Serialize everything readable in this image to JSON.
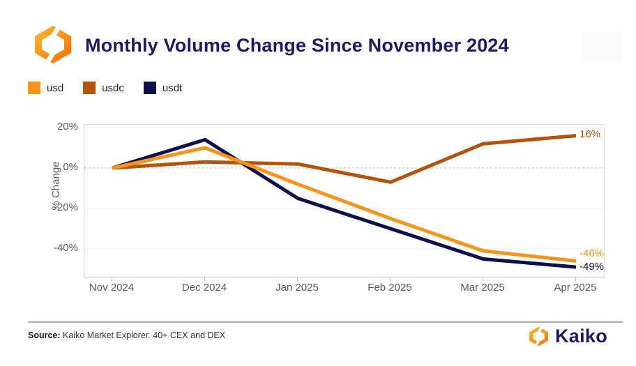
{
  "header": {
    "title": "Monthly Volume Change Since November 2024",
    "logo": "kaiko-hexagon-logo"
  },
  "colors": {
    "title_navy": "#1c1a64",
    "usd_orange": "#f7941e",
    "usdc_brown": "#b5530e",
    "usdt_navy": "#0b0f4d",
    "axis_gray": "#595959",
    "grid_light": "#ededed",
    "zero_dash_gray": "#bbbbbb"
  },
  "chart_data": {
    "type": "line",
    "title": "Monthly Volume Change Since November 2024",
    "categories": [
      "Nov 2024",
      "Dec 2024",
      "Jan 2025",
      "Feb 2025",
      "Mar 2025",
      "Apr 2025"
    ],
    "xlabel": "",
    "ylabel": "% Change",
    "ylim": [
      -55,
      22
    ],
    "yticks": [
      20,
      0,
      -20,
      -40
    ],
    "ytick_labels": [
      "20%",
      "0%",
      "-20%",
      "-40%"
    ],
    "zero_line_style": "dashed",
    "grid": "horizontal-faint",
    "legend_position": "top-left",
    "series": [
      {
        "name": "usdt",
        "color": "#0b0f4d",
        "values": [
          0,
          14,
          -15,
          -30,
          -45,
          -49
        ],
        "end_label": "-49%"
      },
      {
        "name": "usdc",
        "color": "#b5530e",
        "values": [
          0,
          3,
          2,
          -7,
          12,
          16
        ],
        "end_label": "16%"
      },
      {
        "name": "usd",
        "color": "#f7941e",
        "values": [
          0,
          10,
          -8,
          -25,
          -41,
          -46
        ],
        "end_label": "-46%"
      }
    ],
    "legend_order": [
      "usd",
      "usdc",
      "usdt"
    ]
  },
  "legend": {
    "items": [
      {
        "label": "usd",
        "color": "#f7941e"
      },
      {
        "label": "usdc",
        "color": "#b5530e"
      },
      {
        "label": "usdt",
        "color": "#0b0f4d"
      }
    ]
  },
  "footer": {
    "source_label": "Source:",
    "source_text": " Kaiko Market Explorer. 40+ CEX and DEX",
    "brand_name": "Kaiko"
  }
}
